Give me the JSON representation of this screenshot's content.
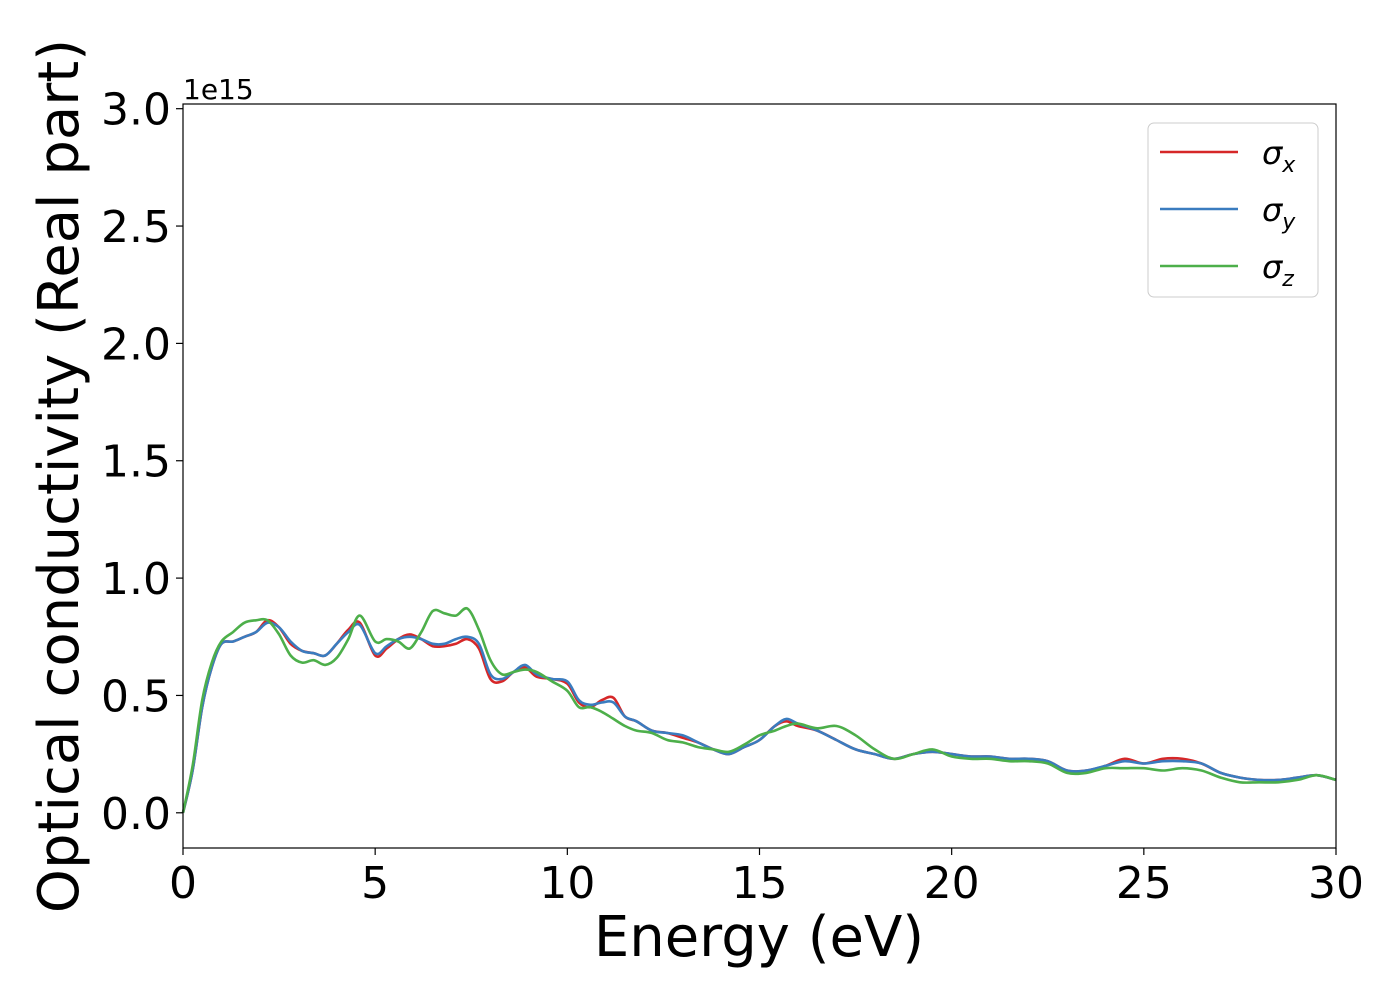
{
  "chart_data": {
    "type": "line",
    "xlabel": "Energy (eV)",
    "ylabel": "Optical conductivity (Real part)",
    "y_offset_label": "1e15",
    "xlim": [
      0,
      30
    ],
    "ylim": [
      -0.15,
      3.02
    ],
    "x_ticks": [
      0,
      5,
      10,
      15,
      20,
      25,
      30
    ],
    "x_tick_labels": [
      "0",
      "5",
      "10",
      "15",
      "20",
      "25",
      "30"
    ],
    "y_ticks": [
      0.0,
      0.5,
      1.0,
      1.5,
      2.0,
      2.5,
      3.0
    ],
    "y_tick_labels": [
      "0.0",
      "0.5",
      "1.0",
      "1.5",
      "2.0",
      "2.5",
      "3.0"
    ],
    "grid": false,
    "legend_position": "top-right",
    "series": [
      {
        "name": "σx",
        "symbol": "σ",
        "subscript": "x",
        "color": "#d62728",
        "x": [
          0,
          0.25,
          0.5,
          0.75,
          1.0,
          1.3,
          1.6,
          1.9,
          2.2,
          2.5,
          2.8,
          3.1,
          3.4,
          3.7,
          4.0,
          4.3,
          4.6,
          5.0,
          5.3,
          5.6,
          5.9,
          6.2,
          6.5,
          6.8,
          7.1,
          7.4,
          7.7,
          8.0,
          8.3,
          8.6,
          8.9,
          9.2,
          9.6,
          10.0,
          10.3,
          10.6,
          10.9,
          11.2,
          11.5,
          11.8,
          12.2,
          12.6,
          13.0,
          13.4,
          13.8,
          14.2,
          14.6,
          15.0,
          15.4,
          15.7,
          16.0,
          16.5,
          17.0,
          17.5,
          18.0,
          18.5,
          19.0,
          19.5,
          20.0,
          20.5,
          21.0,
          21.5,
          22.0,
          22.5,
          23.0,
          23.5,
          24.0,
          24.5,
          25.0,
          25.5,
          26.0,
          26.5,
          27.0,
          27.5,
          28.0,
          28.5,
          29.0,
          29.5,
          30.0
        ],
        "values": [
          0,
          0.18,
          0.45,
          0.62,
          0.72,
          0.73,
          0.75,
          0.77,
          0.82,
          0.79,
          0.72,
          0.69,
          0.68,
          0.67,
          0.72,
          0.78,
          0.81,
          0.67,
          0.7,
          0.74,
          0.76,
          0.74,
          0.71,
          0.71,
          0.72,
          0.74,
          0.7,
          0.57,
          0.56,
          0.6,
          0.62,
          0.58,
          0.57,
          0.55,
          0.47,
          0.45,
          0.48,
          0.49,
          0.41,
          0.39,
          0.35,
          0.34,
          0.32,
          0.3,
          0.27,
          0.25,
          0.28,
          0.31,
          0.37,
          0.39,
          0.37,
          0.35,
          0.31,
          0.27,
          0.25,
          0.23,
          0.25,
          0.26,
          0.25,
          0.24,
          0.24,
          0.23,
          0.23,
          0.22,
          0.18,
          0.18,
          0.2,
          0.23,
          0.21,
          0.23,
          0.23,
          0.21,
          0.17,
          0.15,
          0.14,
          0.14,
          0.15,
          0.16,
          0.14
        ]
      },
      {
        "name": "σy",
        "symbol": "σ",
        "subscript": "y",
        "color": "#3a7cbf",
        "x": [
          0,
          0.25,
          0.5,
          0.75,
          1.0,
          1.3,
          1.6,
          1.9,
          2.2,
          2.5,
          2.8,
          3.1,
          3.4,
          3.7,
          4.0,
          4.3,
          4.6,
          5.0,
          5.3,
          5.6,
          5.9,
          6.2,
          6.5,
          6.8,
          7.1,
          7.4,
          7.7,
          8.0,
          8.3,
          8.6,
          8.9,
          9.2,
          9.6,
          10.0,
          10.3,
          10.6,
          10.9,
          11.2,
          11.5,
          11.8,
          12.2,
          12.6,
          13.0,
          13.4,
          13.8,
          14.2,
          14.6,
          15.0,
          15.4,
          15.7,
          16.0,
          16.5,
          17.0,
          17.5,
          18.0,
          18.5,
          19.0,
          19.5,
          20.0,
          20.5,
          21.0,
          21.5,
          22.0,
          22.5,
          23.0,
          23.5,
          24.0,
          24.5,
          25.0,
          25.5,
          26.0,
          26.5,
          27.0,
          27.5,
          28.0,
          28.5,
          29.0,
          29.5,
          30.0
        ],
        "values": [
          0,
          0.18,
          0.45,
          0.62,
          0.72,
          0.73,
          0.75,
          0.77,
          0.81,
          0.79,
          0.73,
          0.69,
          0.68,
          0.67,
          0.72,
          0.77,
          0.8,
          0.68,
          0.71,
          0.74,
          0.75,
          0.74,
          0.72,
          0.72,
          0.74,
          0.75,
          0.72,
          0.59,
          0.57,
          0.6,
          0.63,
          0.59,
          0.57,
          0.56,
          0.48,
          0.46,
          0.47,
          0.47,
          0.41,
          0.39,
          0.35,
          0.34,
          0.33,
          0.3,
          0.27,
          0.25,
          0.28,
          0.31,
          0.37,
          0.4,
          0.38,
          0.35,
          0.31,
          0.27,
          0.25,
          0.23,
          0.25,
          0.26,
          0.25,
          0.24,
          0.24,
          0.23,
          0.23,
          0.22,
          0.18,
          0.18,
          0.2,
          0.22,
          0.21,
          0.22,
          0.22,
          0.21,
          0.17,
          0.15,
          0.14,
          0.14,
          0.15,
          0.16,
          0.14
        ]
      },
      {
        "name": "σz",
        "symbol": "σ",
        "subscript": "z",
        "color": "#4daf4a",
        "x": [
          0,
          0.25,
          0.5,
          0.75,
          1.0,
          1.3,
          1.6,
          1.9,
          2.2,
          2.5,
          2.8,
          3.1,
          3.4,
          3.7,
          4.0,
          4.3,
          4.6,
          5.0,
          5.3,
          5.6,
          5.9,
          6.2,
          6.5,
          6.8,
          7.1,
          7.4,
          7.7,
          8.0,
          8.3,
          8.6,
          8.9,
          9.2,
          9.6,
          10.0,
          10.3,
          10.6,
          10.9,
          11.2,
          11.5,
          11.8,
          12.2,
          12.6,
          13.0,
          13.4,
          13.8,
          14.2,
          14.6,
          15.0,
          15.4,
          15.7,
          16.0,
          16.5,
          17.0,
          17.5,
          18.0,
          18.5,
          19.0,
          19.5,
          20.0,
          20.5,
          21.0,
          21.5,
          22.0,
          22.5,
          23.0,
          23.5,
          24.0,
          24.5,
          25.0,
          25.5,
          26.0,
          26.5,
          27.0,
          27.5,
          28.0,
          28.5,
          29.0,
          29.5,
          30.0
        ],
        "values": [
          0,
          0.2,
          0.48,
          0.64,
          0.73,
          0.77,
          0.81,
          0.82,
          0.82,
          0.76,
          0.67,
          0.64,
          0.65,
          0.63,
          0.66,
          0.74,
          0.84,
          0.73,
          0.74,
          0.73,
          0.7,
          0.77,
          0.86,
          0.85,
          0.84,
          0.87,
          0.78,
          0.65,
          0.59,
          0.6,
          0.61,
          0.6,
          0.56,
          0.52,
          0.45,
          0.45,
          0.43,
          0.4,
          0.37,
          0.35,
          0.34,
          0.31,
          0.3,
          0.28,
          0.27,
          0.26,
          0.29,
          0.33,
          0.35,
          0.37,
          0.38,
          0.36,
          0.37,
          0.33,
          0.27,
          0.23,
          0.25,
          0.27,
          0.24,
          0.23,
          0.23,
          0.22,
          0.22,
          0.21,
          0.17,
          0.17,
          0.19,
          0.19,
          0.19,
          0.18,
          0.19,
          0.18,
          0.15,
          0.13,
          0.13,
          0.13,
          0.14,
          0.16,
          0.14
        ]
      }
    ]
  }
}
